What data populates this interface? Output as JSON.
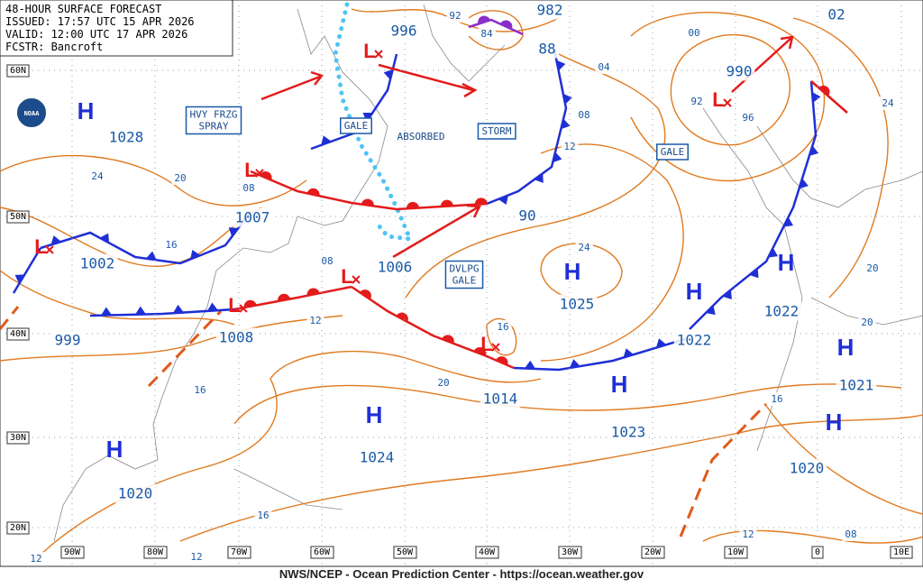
{
  "header": {
    "title": "48-HOUR SURFACE FORECAST",
    "issued": "ISSUED: 17:57 UTC 15 APR 2026",
    "valid": "VALID: 12:00 UTC 17 APR 2026",
    "forecaster": "FCSTR: Bancroft"
  },
  "logo": "NOAA",
  "footer": "NWS/NCEP - Ocean Prediction Center - https://ocean.weather.gov",
  "latitude_labels": [
    "60N",
    "50N",
    "40N",
    "30N",
    "20N"
  ],
  "longitude_labels": [
    "90W",
    "80W",
    "70W",
    "60W",
    "50W",
    "40W",
    "30W",
    "20W",
    "10W",
    "0",
    "10E"
  ],
  "pressure_centers": [
    {
      "symbol": "H",
      "pressure": "1028"
    },
    {
      "symbol": "L",
      "pressure": "996"
    },
    {
      "symbol": "L",
      "pressure": "990"
    },
    {
      "symbol": "L",
      "pressure": "1007"
    },
    {
      "symbol": "L",
      "pressure": "1002"
    },
    {
      "symbol": "L",
      "pressure": "1006"
    },
    {
      "symbol": "L",
      "pressure": "1008"
    },
    {
      "symbol": "L",
      "pressure": "1014"
    },
    {
      "symbol": "H",
      "pressure": "1025"
    },
    {
      "symbol": "H",
      "pressure": "1022"
    },
    {
      "symbol": "H",
      "pressure": "1022"
    },
    {
      "symbol": "H",
      "pressure": "1024"
    },
    {
      "symbol": "H",
      "pressure": "1023"
    },
    {
      "symbol": "H",
      "pressure": "1021"
    },
    {
      "symbol": "H",
      "pressure": "1020"
    },
    {
      "symbol": "H",
      "pressure": "1020"
    }
  ],
  "pressure_labels": [
    "999",
    "982",
    "88",
    "90",
    "02"
  ],
  "isobar_labels": [
    "92",
    "84",
    "00",
    "92",
    "96",
    "04",
    "08",
    "12",
    "24",
    "20",
    "20",
    "16",
    "24",
    "16",
    "20",
    "12",
    "16",
    "16",
    "12",
    "12",
    "08",
    "12",
    "08",
    "08",
    "16",
    "24",
    "20"
  ],
  "annotations": [
    {
      "lines": [
        "HVY FRZG",
        "SPRAY"
      ]
    },
    {
      "lines": [
        "GALE"
      ]
    },
    {
      "lines": [
        "ABSORBED"
      ]
    },
    {
      "lines": [
        "STORM"
      ]
    },
    {
      "lines": [
        "GALE"
      ]
    },
    {
      "lines": [
        "DVLPG",
        "GALE"
      ]
    }
  ]
}
